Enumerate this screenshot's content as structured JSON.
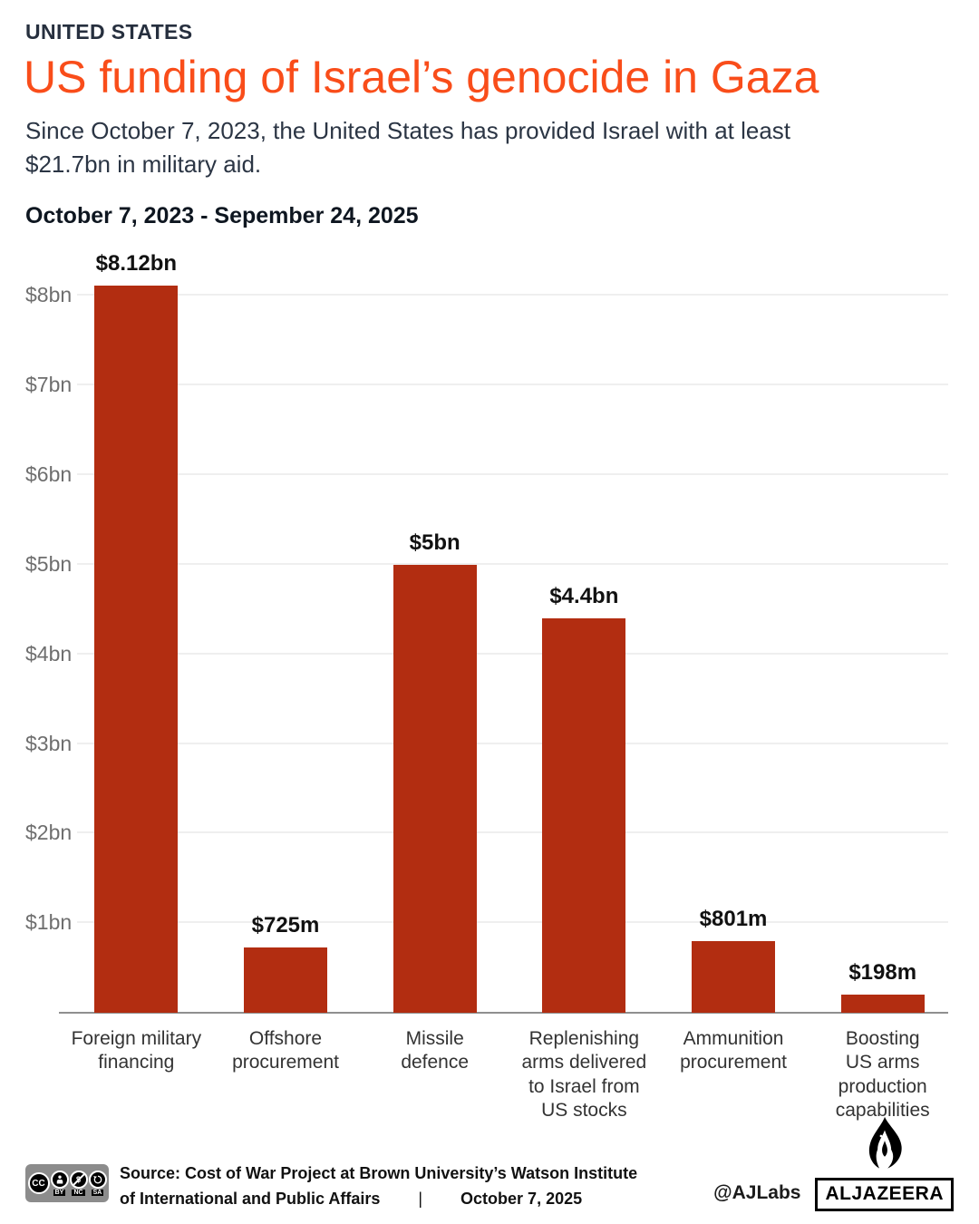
{
  "header": {
    "kicker": "UNITED STATES",
    "title": "US funding of Israel’s genocide in Gaza",
    "subtitle": "Since October 7, 2023, the United States has provided Israel with at least $21.7bn in military aid."
  },
  "chart_data": {
    "type": "bar",
    "title": "October 7, 2023 - Sepember 24, 2025",
    "categories": [
      "Foreign military\nfinancing",
      "Offshore\nprocurement",
      "Missile\ndefence",
      "Replenishing\narms delivered\nto Israel from\nUS stocks",
      "Ammunition\nprocurement",
      "Boosting\nUS arms\nproduction\ncapabilities"
    ],
    "values": [
      8.12,
      0.725,
      5,
      4.4,
      0.801,
      0.198
    ],
    "value_labels": [
      "$8.12bn",
      "$725m",
      "$5bn",
      "$4.4bn",
      "$801m",
      "$198m"
    ],
    "unit": "$bn",
    "yticks": [
      "$1bn",
      "$2bn",
      "$3bn",
      "$4bn",
      "$5bn",
      "$6bn",
      "$7bn",
      "$8bn"
    ],
    "ylim": [
      0,
      8.5
    ],
    "grid": true,
    "legend": "none",
    "bar_color": "#b22d11"
  },
  "colors": {
    "accent_orange": "#f94d1a",
    "navy": "#262f3e",
    "bar_red": "#b22d11",
    "gridline": "#efefef",
    "axis": "#8f8f8f"
  },
  "footer": {
    "badge": {
      "cc": "CC",
      "by": "BY",
      "nc": "NC",
      "sa": "SA",
      "nc_glyph": "$"
    },
    "source_line1": "Source: Cost of War Project at Brown University’s Watson Institute",
    "source_line2": "of International and Public Affairs",
    "separator": "|",
    "date": "October 7, 2025",
    "credit": "@AJLabs",
    "brand": "ALJAZEERA"
  }
}
